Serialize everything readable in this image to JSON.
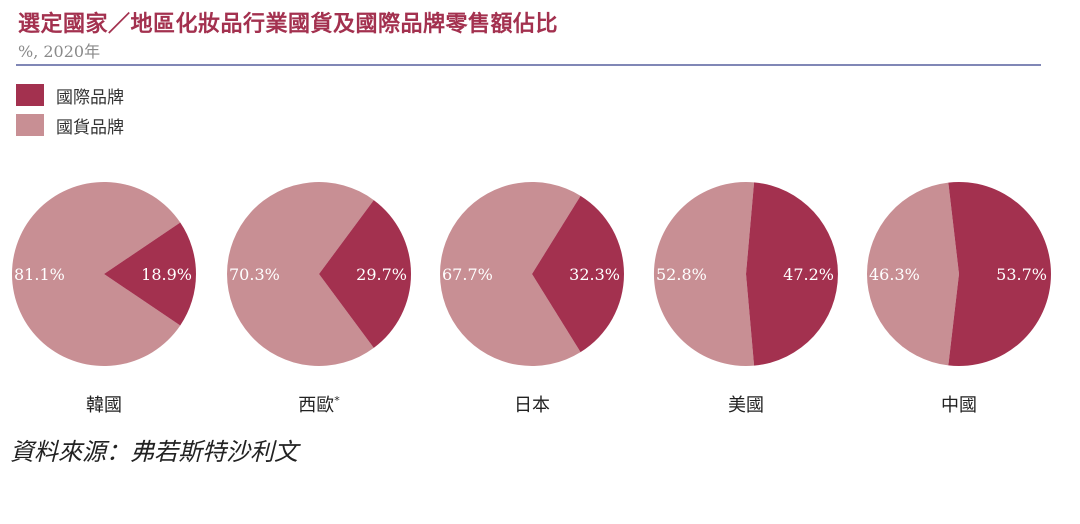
{
  "header": {
    "title": "選定國家／地區化妝品行業國貨及國際品牌零售額佔比",
    "subtitle": "%, 2020年"
  },
  "legend": [
    {
      "label": "國際品牌",
      "color": "#a3314f"
    },
    {
      "label": "國貨品牌",
      "color": "#c88f94"
    }
  ],
  "chart_data": {
    "type": "pie",
    "series_names": [
      "國際品牌",
      "國貨品牌"
    ],
    "colors": {
      "國際品牌": "#a3314f",
      "國貨品牌": "#c88f94"
    },
    "pies": [
      {
        "category": "韓國",
        "國際品牌": 18.9,
        "國貨品牌": 81.1,
        "labels": {
          "國際品牌": "18.9%",
          "國貨品牌": "81.1%"
        }
      },
      {
        "category": "西歐*",
        "國際品牌": 29.7,
        "國貨品牌": 70.3,
        "labels": {
          "國際品牌": "29.7%",
          "國貨品牌": "70.3%"
        }
      },
      {
        "category": "日本",
        "國際品牌": 32.3,
        "國貨品牌": 67.7,
        "labels": {
          "國際品牌": "32.3%",
          "國貨品牌": "67.7%"
        }
      },
      {
        "category": "美國",
        "國際品牌": 47.2,
        "國貨品牌": 52.8,
        "labels": {
          "國際品牌": "47.2%",
          "國貨品牌": "52.8%"
        }
      },
      {
        "category": "中國",
        "國際品牌": 53.7,
        "國貨品牌": 46.3,
        "labels": {
          "國際品牌": "53.7%",
          "國貨品牌": "46.3%"
        }
      }
    ]
  },
  "footer": {
    "source": "資料來源：弗若斯特沙利文"
  }
}
